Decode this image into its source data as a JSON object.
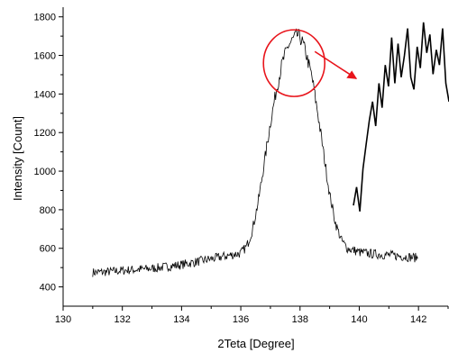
{
  "chart_data": {
    "type": "line",
    "xlabel": "2Teta [Degree]",
    "ylabel": "Intensity [Count]",
    "xlim": [
      130,
      143
    ],
    "ylim": [
      300,
      1850
    ],
    "xticks": [
      130,
      132,
      134,
      136,
      138,
      140,
      142
    ],
    "yticks": [
      400,
      600,
      800,
      1000,
      1200,
      1400,
      1600,
      1800
    ],
    "grid": false,
    "line_color": "#000000",
    "highlight_color": "#e8141b",
    "series": [
      {
        "x": [
          131.0,
          131.5,
          132.0,
          132.5,
          133.0,
          133.5,
          134.0,
          134.5,
          135.0,
          135.5,
          136.0,
          136.2,
          136.4,
          136.6,
          136.8,
          137.0,
          137.2,
          137.4,
          137.6,
          137.8,
          137.9,
          138.0,
          138.1,
          138.2,
          138.4,
          138.6,
          138.8,
          139.0,
          139.2,
          139.4,
          139.6,
          140.0,
          140.5,
          141.0,
          141.5,
          142.0
        ],
        "values": [
          475,
          478,
          485,
          490,
          495,
          505,
          515,
          530,
          545,
          560,
          575,
          610,
          700,
          850,
          1050,
          1250,
          1420,
          1560,
          1650,
          1690,
          1705,
          1695,
          1660,
          1610,
          1490,
          1300,
          1090,
          880,
          730,
          640,
          600,
          580,
          570,
          565,
          558,
          550
        ]
      }
    ],
    "inset": {
      "description_x": [
        140.0,
        140.1,
        140.2,
        140.3,
        140.4,
        140.5,
        140.6,
        140.7,
        140.8,
        140.9,
        141.0,
        141.1,
        141.2,
        141.3,
        141.4,
        141.5,
        141.6,
        141.7,
        141.8,
        141.9,
        142.0,
        142.1,
        142.2,
        142.3,
        142.4,
        142.5,
        142.6,
        142.7,
        142.8,
        142.9,
        143.0
      ],
      "values": [
        1300,
        1360,
        1280,
        1420,
        1500,
        1580,
        1640,
        1560,
        1700,
        1620,
        1760,
        1690,
        1850,
        1700,
        1830,
        1720,
        1790,
        1880,
        1720,
        1680,
        1820,
        1750,
        1900,
        1800,
        1860,
        1730,
        1810,
        1760,
        1880,
        1700,
        1640
      ]
    }
  }
}
